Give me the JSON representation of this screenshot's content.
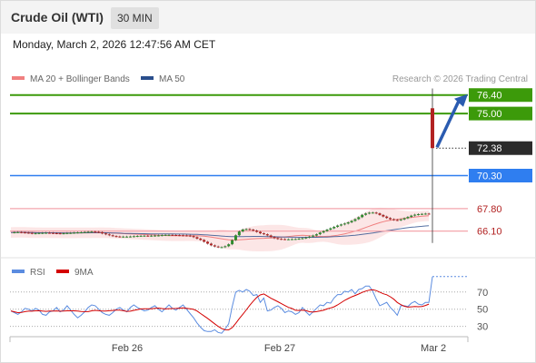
{
  "header": {
    "title": "Crude Oil (WTI)",
    "timeframe": "30 MIN"
  },
  "timestamp": "Monday, March 2, 2026 12:47:56 AM CET",
  "colors": {
    "bollinger": "#f08080",
    "ma50": "#2a4e8c",
    "green_level": "#3c9a0a",
    "blue_level": "#2f7ef0",
    "pink_level": "#f4a6ad",
    "rsi": "#5b8ce0",
    "rsi_ma": "#d40000",
    "arrow": "#2a5bb0",
    "bull": "#2e8b2e",
    "bear": "#b22222"
  },
  "chart_data": [
    {
      "type": "candlestick",
      "legend": [
        {
          "name": "MA 20 + Bollinger Bands",
          "color": "#f08080"
        },
        {
          "name": "MA 50",
          "color": "#2a4e8c"
        }
      ],
      "credit": "Research © 2026 Trading Central",
      "x_ticks": [
        "Feb 26",
        "Feb 27",
        "Mar 2"
      ],
      "ylim": [
        64.7,
        77.0
      ],
      "last_price": "72.38",
      "levels": [
        {
          "value": 76.4,
          "label": "76.40",
          "style": "green-solid"
        },
        {
          "value": 75.0,
          "label": "75.00",
          "style": "green-solid"
        },
        {
          "value": 70.3,
          "label": "70.30",
          "style": "blue-solid"
        },
        {
          "value": 67.8,
          "label": "67.80",
          "style": "pink-line"
        },
        {
          "value": 66.1,
          "label": "66.10",
          "style": "pink-line"
        }
      ],
      "close": [
        65.99,
        66.01,
        66.02,
        66.0,
        65.98,
        65.96,
        65.92,
        65.93,
        65.95,
        65.96,
        65.97,
        65.96,
        65.94,
        65.93,
        65.92,
        65.93,
        65.95,
        65.96,
        65.98,
        66.0,
        66.01,
        66.03,
        66.05,
        66.06,
        66.04,
        66.01,
        65.92,
        65.85,
        65.78,
        65.72,
        65.69,
        65.68,
        65.68,
        65.68,
        65.69,
        65.71,
        65.73,
        65.74,
        65.75,
        65.74,
        65.75,
        65.76,
        65.77,
        65.79,
        65.81,
        65.81,
        65.8,
        65.79,
        65.78,
        65.77,
        65.76,
        65.72,
        65.64,
        65.53,
        65.43,
        65.29,
        65.15,
        65.02,
        64.93,
        64.88,
        64.88,
        64.95,
        65.1,
        65.41,
        65.78,
        66.07,
        66.22,
        66.25,
        66.21,
        66.14,
        66.04,
        65.93,
        65.86,
        65.77,
        65.65,
        65.56,
        65.51,
        65.49,
        65.48,
        65.48,
        65.49,
        65.5,
        65.53,
        65.56,
        65.61,
        65.68,
        65.76,
        65.86,
        65.99,
        66.1,
        66.21,
        66.31,
        66.42,
        66.52,
        66.6,
        66.67,
        66.76,
        66.87,
        67.0,
        67.15,
        67.33,
        67.43,
        67.49,
        67.5,
        67.44,
        67.32,
        67.2,
        67.09,
        67.0,
        66.94,
        66.93,
        66.98,
        67.07,
        67.17,
        67.27,
        67.34,
        67.38,
        67.4,
        67.42,
        67.41,
        72.38
      ],
      "rsi": {
        "legend": [
          {
            "name": "RSI",
            "color": "#5b8ce0"
          },
          {
            "name": "9MA",
            "color": "#d40000"
          }
        ],
        "levels": [
          70,
          50,
          30
        ],
        "ylim": [
          18,
          92
        ],
        "last": 88,
        "values": [
          48,
          46,
          44,
          47,
          51,
          50,
          48,
          51,
          49,
          44,
          43,
          47,
          48,
          52,
          47,
          49,
          54,
          49,
          44,
          40,
          43,
          47,
          52,
          55,
          54,
          50,
          46,
          44,
          43,
          46,
          50,
          52,
          49,
          47,
          52,
          55,
          52,
          50,
          48,
          49,
          52,
          54,
          50,
          47,
          51,
          55,
          51,
          49,
          52,
          55,
          50,
          45,
          40,
          34,
          29,
          25,
          24,
          24,
          26,
          23,
          22,
          27,
          33,
          53,
          70,
          72,
          70,
          73,
          71,
          66,
          67,
          58,
          63,
          48,
          49,
          52,
          54,
          51,
          46,
          48,
          47,
          44,
          46,
          52,
          47,
          43,
          47,
          51,
          55,
          54,
          58,
          57,
          63,
          67,
          67,
          71,
          70,
          73,
          68,
          73,
          74,
          77,
          77,
          71,
          62,
          54,
          56,
          58,
          52,
          48,
          43,
          54,
          54,
          53,
          57,
          59,
          56,
          55,
          58,
          58,
          88
        ]
      }
    }
  ]
}
